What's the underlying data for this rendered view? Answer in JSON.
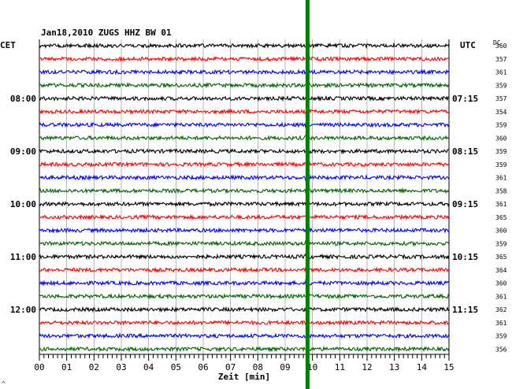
{
  "chart_data": {
    "type": "line",
    "title": "Jan18,2010   ZUGS HHZ BW 01",
    "left_axis_label": "CET",
    "right_axis_label": "UTC",
    "dc_label": "DC",
    "xlabel": "Zeit [min]",
    "xlim": [
      0,
      15
    ],
    "x_ticks": [
      "00",
      "01",
      "02",
      "03",
      "04",
      "05",
      "06",
      "07",
      "08",
      "09",
      "10",
      "11",
      "12",
      "13",
      "14",
      "15"
    ],
    "rows": 24,
    "trace_colors": [
      "#000000",
      "#ff0000",
      "#0000ff",
      "#006400"
    ],
    "left_time_labels": [
      {
        "row": 4,
        "label": "08:00"
      },
      {
        "row": 8,
        "label": "09:00"
      },
      {
        "row": 12,
        "label": "10:00"
      },
      {
        "row": 16,
        "label": "11:00"
      },
      {
        "row": 20,
        "label": "12:00"
      }
    ],
    "right_time_labels": [
      {
        "row": 4,
        "label": "07:15"
      },
      {
        "row": 8,
        "label": "08:15"
      },
      {
        "row": 12,
        "label": "09:15"
      },
      {
        "row": 16,
        "label": "10:15"
      },
      {
        "row": 20,
        "label": "11:15"
      }
    ],
    "dc_values": [
      "360",
      "357",
      "361",
      "359",
      "357",
      "354",
      "359",
      "360",
      "359",
      "359",
      "361",
      "358",
      "361",
      "365",
      "360",
      "359",
      "365",
      "364",
      "360",
      "361",
      "362",
      "361",
      "359",
      "356"
    ],
    "marker_line": {
      "x_min": 9.82,
      "color": "#008000"
    }
  },
  "corner_mark": "^"
}
